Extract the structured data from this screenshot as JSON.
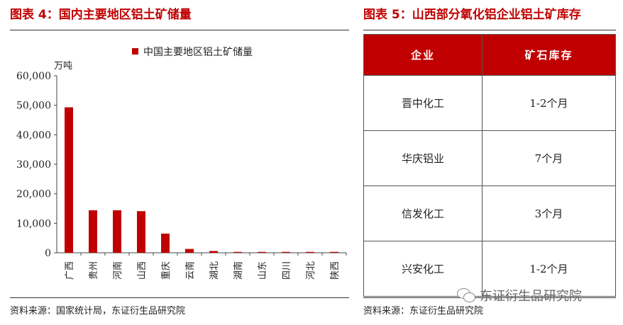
{
  "left_figure": {
    "title": "图表 4：国内主要地区铝土矿储量",
    "source": "资料来源：国家统计局，东证衍生品研究院"
  },
  "right_figure": {
    "title": "图表 5：山西部分氧化铝企业铝土矿库存",
    "source": "资料来源：东证衍生品研究院",
    "table": {
      "headers": [
        "企业",
        "矿石库存"
      ],
      "rows": [
        [
          "晋中化工",
          "1-2个月"
        ],
        [
          "华庆铝业",
          "7个月"
        ],
        [
          "信发化工",
          "3个月"
        ],
        [
          "兴安化工",
          "1-2个月"
        ]
      ]
    }
  },
  "watermark": "东证衍生品研究院",
  "chart_data": {
    "type": "bar",
    "unit_label": "万吨",
    "legend": "中国主要地区铝土矿储量",
    "legend_position": "top",
    "categories": [
      "广西",
      "贵州",
      "河南",
      "山西",
      "重庆",
      "云南",
      "湖北",
      "湖南",
      "山东",
      "四川",
      "河北",
      "陕西"
    ],
    "series": [
      {
        "name": "中国主要地区铝土矿储量",
        "color": "#c00000",
        "values": [
          49300,
          14400,
          14400,
          14100,
          6500,
          1300,
          600,
          300,
          300,
          300,
          300,
          300
        ]
      }
    ],
    "ylim": [
      0,
      60000
    ],
    "yticks": [
      0,
      10000,
      20000,
      30000,
      40000,
      50000,
      60000
    ],
    "ytick_labels": [
      "0",
      "10,000",
      "20,000",
      "30,000",
      "40,000",
      "50,000",
      "60,000"
    ],
    "grid": false
  }
}
